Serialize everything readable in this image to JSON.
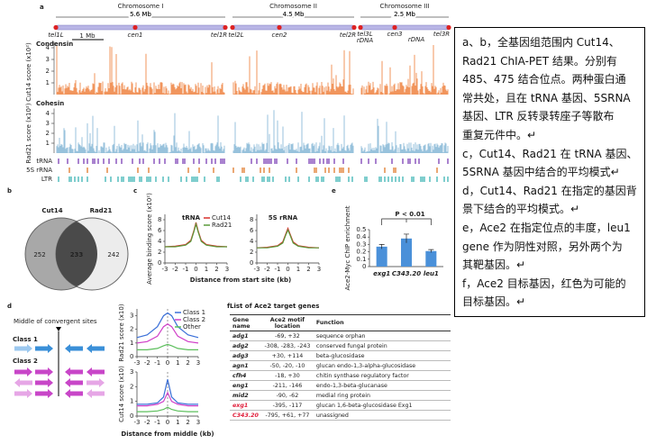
{
  "panel_labels": [
    "a",
    "b",
    "c",
    "d",
    "e",
    "f"
  ],
  "panel_a": {
    "chromosomes": [
      {
        "name": "Chromosome I",
        "size": "5.6 Mb"
      },
      {
        "name": "Chromosome II",
        "size": "4.5 Mb"
      },
      {
        "name": "Chromosome III",
        "size": "2.5 Mb"
      }
    ],
    "scale_bar": "1 Mb",
    "landmarks": [
      "tel1L",
      "cen1",
      "tel1R",
      "tel2L",
      "cen2",
      "tel2R",
      "tel3L",
      "rDNA",
      "cen3",
      "rDNA",
      "tel3R"
    ],
    "condensin": "Condensin",
    "cut14_label": "Cut14 score (x10²)",
    "cohesin": "Cohesin",
    "rad21_label": "Rad21 score (x10²)",
    "score_ticks": [
      1,
      2,
      3,
      4
    ],
    "tracks": [
      "tRNA",
      "5S rRNA",
      "LTR"
    ]
  },
  "venn": {
    "left": "Cut14",
    "right": "Rad21",
    "left_only": 252,
    "both": 233,
    "right_only": 242
  },
  "panel_d_diagram": {
    "title": "Middle of convergent sites",
    "class1": "Class 1",
    "class2": "Class 2"
  },
  "table": {
    "title": "List of Ace2 target genes",
    "headers": [
      "Gene name",
      "Ace2 motif location",
      "Function"
    ],
    "rows": [
      [
        "adg1",
        "-69, +32",
        "sequence orphan"
      ],
      [
        "adg2",
        "-308, -283, -243",
        "conserved fungal protein"
      ],
      [
        "adg3",
        "+30, +114",
        "beta-glucosidase"
      ],
      [
        "agn1",
        "-50, -20, -10",
        "glucan endo-1,3-alpha-glucosidase"
      ],
      [
        "cfh4",
        "-18, +30",
        "chitin synthase regulatory factor"
      ],
      [
        "eng1",
        "-211, -146",
        "endo-1,3-beta-glucanase"
      ],
      [
        "mid2",
        "-90, -62",
        "medial ring protein"
      ],
      [
        "exg1",
        "-395, -117",
        "glucan 1,6-beta-glucosidase Exg1"
      ],
      [
        "C343.20",
        "-795, +61, +77",
        "unassigned"
      ]
    ],
    "highlight_rows": [
      7,
      8
    ],
    "highlight_color": "#e0203c"
  },
  "caption": [
    "a、b，全基因组范围内 Cut14、",
    "Rad21 ChIA-PET 结果。分别有",
    "485、475 结合位点。两种蛋白通",
    "常共处，且在 tRNA 基因、5SRNA",
    "基因、LTR 反转录转座子等散布",
    "重复元件中。↵",
    "c，Cut14、Rad21 在 tRNA 基因、",
    "5SRNA 基因中结合的平均模式↵",
    "d，Cut14、Rad21 在指定的基因背",
    "景下结合的平均模式。↵",
    "e，Ace2 在指定位点的丰度，leu1",
    "gene 作为阴性对照，另外两个为",
    "其靶基因。↵",
    "f，Ace2 目标基因，红色为可能的",
    "目标基因。↵"
  ],
  "chart_data": [
    {
      "type": "line",
      "title": "tRNA",
      "x": [
        -3,
        -2,
        -1,
        -0.5,
        -0.2,
        0,
        0.2,
        0.5,
        1,
        2,
        3
      ],
      "series": [
        {
          "name": "Cut14",
          "color": "#d9302c",
          "values": [
            3,
            3.1,
            3.4,
            4.2,
            6,
            7.5,
            6,
            4.2,
            3.4,
            3.1,
            3
          ]
        },
        {
          "name": "Rad21",
          "color": "#5a9a3a",
          "values": [
            3,
            3,
            3.3,
            4,
            5.8,
            7.2,
            5.8,
            4,
            3.3,
            3,
            3
          ]
        }
      ],
      "xlim": [
        -3,
        3
      ],
      "xticks": [
        -3,
        -2,
        -1,
        0,
        1,
        2,
        3
      ],
      "ylim": [
        0,
        9
      ],
      "yticks": [
        0,
        2,
        4,
        6,
        8
      ],
      "y_label": "Average binding score (x10²)",
      "x_label": "Distance from start site (kb)",
      "legend": "top-right"
    },
    {
      "type": "line",
      "title": "5S rRNA",
      "x": [
        -3,
        -2,
        -1,
        -0.5,
        -0.2,
        0,
        0.2,
        0.5,
        1,
        2,
        3
      ],
      "series": [
        {
          "color": "#d9302c",
          "values": [
            2.8,
            2.9,
            3.2,
            3.9,
            5.4,
            6.4,
            5.4,
            3.9,
            3.2,
            2.9,
            2.8
          ]
        },
        {
          "color": "#5a9a3a",
          "values": [
            2.8,
            2.8,
            3.1,
            3.7,
            5.2,
            6.1,
            5.2,
            3.7,
            3.1,
            2.8,
            2.8
          ]
        }
      ],
      "xlim": [
        -3,
        3
      ],
      "xticks": [
        -3,
        -2,
        -1,
        0,
        1,
        2,
        3
      ],
      "ylim": [
        0,
        9
      ],
      "yticks": [
        0,
        2,
        4,
        6,
        8
      ]
    },
    {
      "type": "bar",
      "categories": [
        "exg1",
        "C343.20",
        "leu1"
      ],
      "values": [
        0.27,
        0.38,
        0.21
      ],
      "errors": [
        0.03,
        0.06,
        0.02
      ],
      "color": "#4a90d9",
      "ylim": [
        0,
        0.5
      ],
      "yticks": [
        0,
        0.1,
        0.2,
        0.3,
        0.4,
        0.5
      ],
      "y_label": "Ace2-Myc ChIP enrichment",
      "annotation": "P < 0.01"
    },
    {
      "type": "line",
      "x": [
        -3,
        -2,
        -1,
        -0.4,
        0,
        0.4,
        1,
        2,
        3
      ],
      "series": [
        {
          "name": "Class 1",
          "color": "#3a6fd8",
          "values": [
            1.4,
            1.6,
            2.2,
            3,
            3.2,
            3,
            2.2,
            1.6,
            1.4
          ]
        },
        {
          "name": "Class 2",
          "color": "#d040c8",
          "values": [
            1,
            1.1,
            1.5,
            2.2,
            2.4,
            2.2,
            1.5,
            1.1,
            1
          ]
        },
        {
          "name": "Other",
          "color": "#5cbf5c",
          "values": [
            0.5,
            0.5,
            0.6,
            0.8,
            0.9,
            0.8,
            0.6,
            0.5,
            0.5
          ]
        }
      ],
      "xlim": [
        -3,
        3
      ],
      "xticks": [
        -3,
        -2,
        -1,
        0,
        1,
        2,
        3
      ],
      "ylim": [
        0,
        3.5
      ],
      "yticks": [
        0,
        1,
        2,
        3
      ],
      "y_label": "Rad21 score (x10)",
      "legend": "top-right"
    },
    {
      "type": "line",
      "x": [
        -3,
        -2,
        -1,
        -0.4,
        0,
        0.4,
        1,
        2,
        3
      ],
      "series": [
        {
          "color": "#3a6fd8",
          "values": [
            0.8,
            0.8,
            0.9,
            1.3,
            2.5,
            1.3,
            0.9,
            0.8,
            0.8
          ]
        },
        {
          "color": "#d040c8",
          "values": [
            0.7,
            0.7,
            0.8,
            1,
            1.6,
            1,
            0.8,
            0.7,
            0.7
          ]
        },
        {
          "color": "#5cbf5c",
          "values": [
            0.3,
            0.3,
            0.35,
            0.45,
            0.6,
            0.45,
            0.35,
            0.3,
            0.3
          ]
        }
      ],
      "xlim": [
        -3,
        3
      ],
      "xticks": [
        -3,
        -2,
        -1,
        0,
        1,
        2,
        3
      ],
      "ylim": [
        0,
        3
      ],
      "yticks": [
        0,
        1,
        2,
        3
      ],
      "y_label": "Cut14 score (x10)",
      "x_label": "Distance from middle (kb)"
    }
  ]
}
